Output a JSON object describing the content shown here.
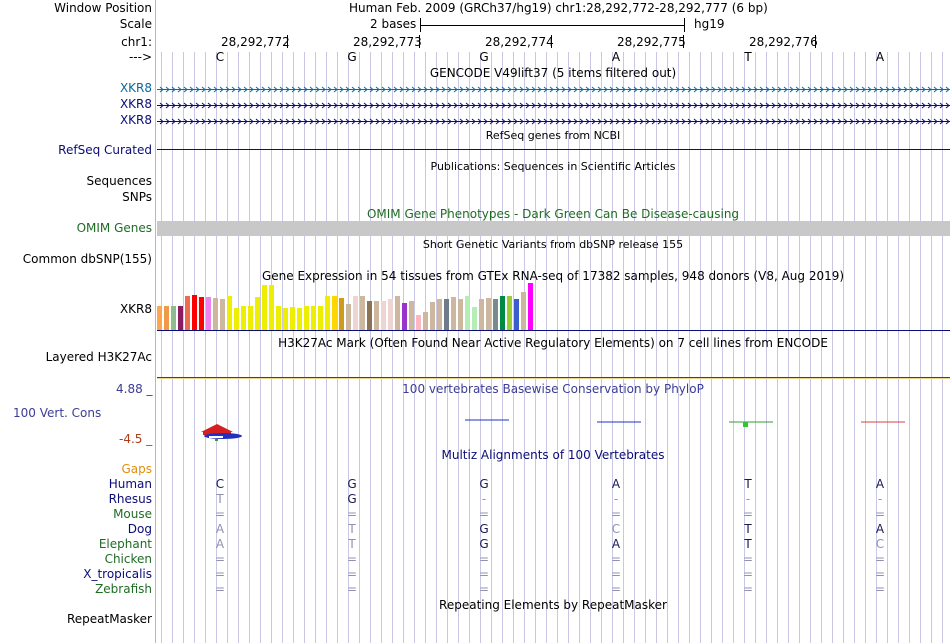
{
  "colors": {
    "gencode_blue": "#0a68a0",
    "navy": "#0c0c78",
    "omim_green": "#1f6b25",
    "gaps_orange": "#e18f0f",
    "species_green": "#1f6b25",
    "cons_blue": "#3c3c96",
    "cons_red": "#b03c1e",
    "omim_bar": "#c8c8c8",
    "h3k_line": "#5a3c1e",
    "grid": "#c8c8e6",
    "divider": "#e6a5a5"
  },
  "header": {
    "window_position_label": "Window Position",
    "window_position_value": "Human Feb. 2009 (GRCh37/hg19)   chr1:28,292,772-28,292,777 (6 bp)",
    "scale_label": "Scale",
    "scale_value": "2 bases",
    "scale_assembly": "hg19",
    "chr_label": "chr1:",
    "strand_label": "--->",
    "positions": [
      "28,292,772",
      "28,292,773",
      "28,292,774",
      "28,292,775",
      "28,292,776"
    ],
    "bases": [
      "C",
      "G",
      "G",
      "A",
      "T",
      "A"
    ]
  },
  "gencode": {
    "title": "GENCODE V49lift37 (5 items filtered out)",
    "items": [
      "XKR8",
      "XKR8",
      "XKR8"
    ]
  },
  "refseq": {
    "title": "RefSeq genes from NCBI",
    "label": "RefSeq Curated"
  },
  "publications": {
    "title": "Publications: Sequences in Scientific Articles",
    "labels": [
      "Sequences",
      "SNPs"
    ]
  },
  "omim": {
    "title": "OMIM Gene Phenotypes - Dark Green Can Be Disease-causing",
    "label": "OMIM Genes"
  },
  "dbsnp": {
    "title": "Short Genetic Variants from dbSNP release 155",
    "label": "Common dbSNP(155)"
  },
  "gtex": {
    "title": "Gene Expression in 54 tissues from GTEx RNA-seq of 17382 samples, 948 donors (V8, Aug 2019)",
    "label": "XKR8",
    "values": [
      0.5,
      0.5,
      0.5,
      0.5,
      0.72,
      0.75,
      0.7,
      0.7,
      0.68,
      0.66,
      0.72,
      0.47,
      0.5,
      0.5,
      0.7,
      0.95,
      0.95,
      0.5,
      0.47,
      0.48,
      0.46,
      0.5,
      0.5,
      0.5,
      0.72,
      0.72,
      0.68,
      0.55,
      0.72,
      0.72,
      0.62,
      0.62,
      0.62,
      0.66,
      0.72,
      0.57,
      0.62,
      0.32,
      0.38,
      0.6,
      0.66,
      0.66,
      0.7,
      0.66,
      0.72,
      0.48,
      0.66,
      0.68,
      0.66,
      0.72,
      0.72,
      0.66,
      0.8,
      1.0
    ],
    "bar_colors": [
      "#ffa54f",
      "#ee9a49",
      "#8fbc8f",
      "#8b1c62",
      "#ee6a50",
      "#ff0000",
      "#ff0000",
      "#ee82ee",
      "#cdb79e",
      "#cdb79e",
      "#eeee00",
      "#eeee00",
      "#eeee00",
      "#eeee00",
      "#eeee00",
      "#eeee00",
      "#eeee00",
      "#eeee00",
      "#eeee00",
      "#eeee00",
      "#eeee00",
      "#eeee00",
      "#eeee00",
      "#eeee00",
      "#eeee00",
      "#ffd700",
      "#cd9b1d",
      "#cdb79e",
      "#eed5d2",
      "#cdb79e",
      "#8b7355",
      "#cdb79e",
      "#eed5d2",
      "#eed5d2",
      "#cdb79e",
      "#9a32cd",
      "#cdb79e",
      "#ffb6c1",
      "#cdb79e",
      "#cdb79e",
      "#cdb79e",
      "#6e7b8b",
      "#cdb79e",
      "#cdb79e",
      "#b4eeb4",
      "#b4eeb4",
      "#cdb79e",
      "#cdb79e",
      "#7a8b8b",
      "#008b45",
      "#9acd32",
      "#3a5fcd",
      "#cdb79e",
      "#ff00ff"
    ]
  },
  "h3k27ac": {
    "title": "H3K27Ac Mark (Often Found Near Active Regulatory Elements) on 7 cell lines from ENCODE",
    "label": "Layered H3K27Ac"
  },
  "conservation": {
    "title": "100 vertebrates Basewise Conservation by PhyloP",
    "label": "100 Vert. Cons",
    "max": "4.88 _",
    "min": "-4.5 _"
  },
  "multiz": {
    "title": "Multiz Alignments of 100 Vertebrates",
    "gaps_label": "Gaps",
    "species": [
      {
        "name": "Human",
        "bases": [
          "C",
          "G",
          "G",
          "A",
          "T",
          "A"
        ]
      },
      {
        "name": "Rhesus",
        "bases": [
          "T",
          "G",
          "-",
          "-",
          "-",
          "-"
        ]
      },
      {
        "name": "Mouse",
        "bases": [
          "=",
          "=",
          "=",
          "=",
          "=",
          "="
        ]
      },
      {
        "name": "Dog",
        "bases": [
          "A",
          "T",
          "G",
          "C",
          "T",
          "A"
        ]
      },
      {
        "name": "Elephant",
        "bases": [
          "A",
          "T",
          "G",
          "A",
          "T",
          "C"
        ]
      },
      {
        "name": "Chicken",
        "bases": [
          "=",
          "=",
          "=",
          "=",
          "=",
          "="
        ]
      },
      {
        "name": "X_tropicalis",
        "bases": [
          "=",
          "=",
          "=",
          "=",
          "=",
          "="
        ]
      },
      {
        "name": "Zebrafish",
        "bases": [
          "=",
          "=",
          "=",
          "=",
          "=",
          "="
        ]
      }
    ]
  },
  "repeatmasker": {
    "title": "Repeating Elements by RepeatMasker",
    "label": "RepeatMasker"
  }
}
